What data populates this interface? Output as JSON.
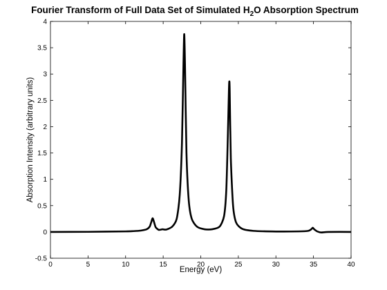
{
  "chart_data": {
    "type": "line",
    "title": {
      "prefix": "Fourier Transform of Full Data Set of Simulated H",
      "subscript": "2",
      "suffix": "O Absorption Spectrum"
    },
    "xlabel": "Energy (eV)",
    "ylabel": "Absorption Intensity (arbitrary units)",
    "xlim": [
      0,
      40
    ],
    "ylim": [
      -0.5,
      4
    ],
    "xticks": [
      "0",
      "5",
      "10",
      "15",
      "20",
      "25",
      "30",
      "35",
      "40"
    ],
    "yticks": [
      "-0.5",
      "0",
      "0.5",
      "1",
      "1.5",
      "2",
      "2.5",
      "3",
      "3.5",
      "4"
    ],
    "grid": false,
    "legend": "none",
    "line_color": "#000000",
    "peaks": [
      {
        "x": 13.6,
        "y": 0.26
      },
      {
        "x": 14.9,
        "y": 0.05
      },
      {
        "x": 17.8,
        "y": 3.76
      },
      {
        "x": 23.8,
        "y": 2.86
      },
      {
        "x": 34.9,
        "y": 0.08
      }
    ],
    "series": [
      {
        "x": [
          0,
          5,
          10,
          11,
          12,
          12.8,
          13.2,
          13.4,
          13.6,
          13.8,
          14.0,
          14.4,
          14.9,
          15.4,
          16.2,
          16.8,
          17.2,
          17.5,
          17.7,
          17.8,
          17.9,
          18.1,
          18.4,
          18.8,
          19.5,
          20.5,
          21.5,
          22.5,
          23.1,
          23.4,
          23.6,
          23.75,
          23.8,
          23.85,
          24.0,
          24.3,
          24.7,
          25.5,
          27,
          30,
          33,
          34.3,
          34.7,
          34.9,
          35.1,
          35.5,
          36,
          37,
          40
        ],
        "y": [
          0,
          0.002,
          0.01,
          0.015,
          0.025,
          0.05,
          0.1,
          0.18,
          0.26,
          0.18,
          0.09,
          0.04,
          0.05,
          0.045,
          0.1,
          0.25,
          0.7,
          1.7,
          3.2,
          3.76,
          3.2,
          1.5,
          0.6,
          0.25,
          0.1,
          0.05,
          0.05,
          0.1,
          0.3,
          0.8,
          1.8,
          2.7,
          2.86,
          2.7,
          1.4,
          0.5,
          0.18,
          0.06,
          0.02,
          0.008,
          0.01,
          0.02,
          0.05,
          0.08,
          0.05,
          0.01,
          -0.01,
          0,
          0
        ]
      }
    ]
  }
}
